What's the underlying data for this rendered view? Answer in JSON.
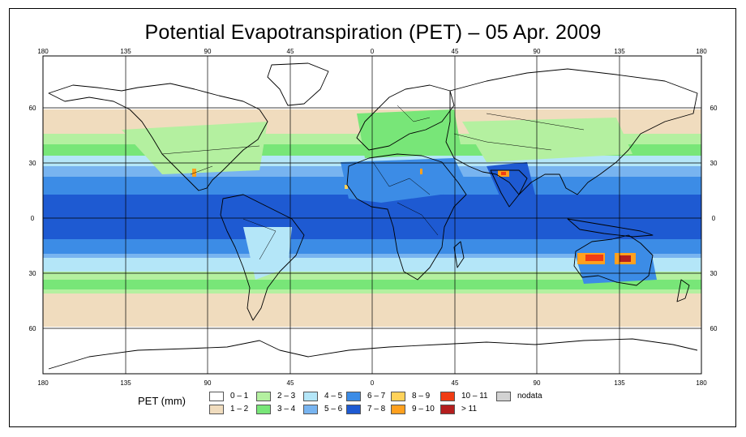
{
  "title": "Potential Evapotranspiration (PET) – 05 Apr. 2009",
  "map": {
    "lon_ticks": [
      "180",
      "135",
      "90",
      "45",
      "0",
      "45",
      "90",
      "135",
      "180"
    ],
    "lat_ticks": [
      "60",
      "30",
      "0",
      "30",
      "60"
    ],
    "colors": {
      "c0": "#ffffff",
      "c1": "#f0dcbe",
      "c2": "#b4f0a0",
      "c3": "#78e678",
      "c4": "#b4e6f8",
      "c5": "#78b4f0",
      "c6": "#3c8ce6",
      "c7": "#1e5ad2",
      "c8": "#ffd25a",
      "c9": "#ffa01e",
      "c10": "#f03c14",
      "c11": "#b41e1e",
      "nodata": "#d2d2d2"
    }
  },
  "legend": {
    "title": "PET (mm)",
    "items": [
      {
        "label": "0 – 1",
        "color": "#ffffff"
      },
      {
        "label": "1 – 2",
        "color": "#f0dcbe"
      },
      {
        "label": "2 – 3",
        "color": "#b4f0a0"
      },
      {
        "label": "3 – 4",
        "color": "#78e678"
      },
      {
        "label": "4 – 5",
        "color": "#b4e6f8"
      },
      {
        "label": "5 – 6",
        "color": "#78b4f0"
      },
      {
        "label": "6 – 7",
        "color": "#3c8ce6"
      },
      {
        "label": "7 – 8",
        "color": "#1e5ad2"
      },
      {
        "label": "8 – 9",
        "color": "#ffd25a"
      },
      {
        "label": "9 – 10",
        "color": "#ffa01e"
      },
      {
        "label": "10 – 11",
        "color": "#f03c14"
      },
      {
        "label": "> 11",
        "color": "#b41e1e"
      },
      {
        "label": "nodata",
        "color": "#d2d2d2"
      }
    ]
  }
}
